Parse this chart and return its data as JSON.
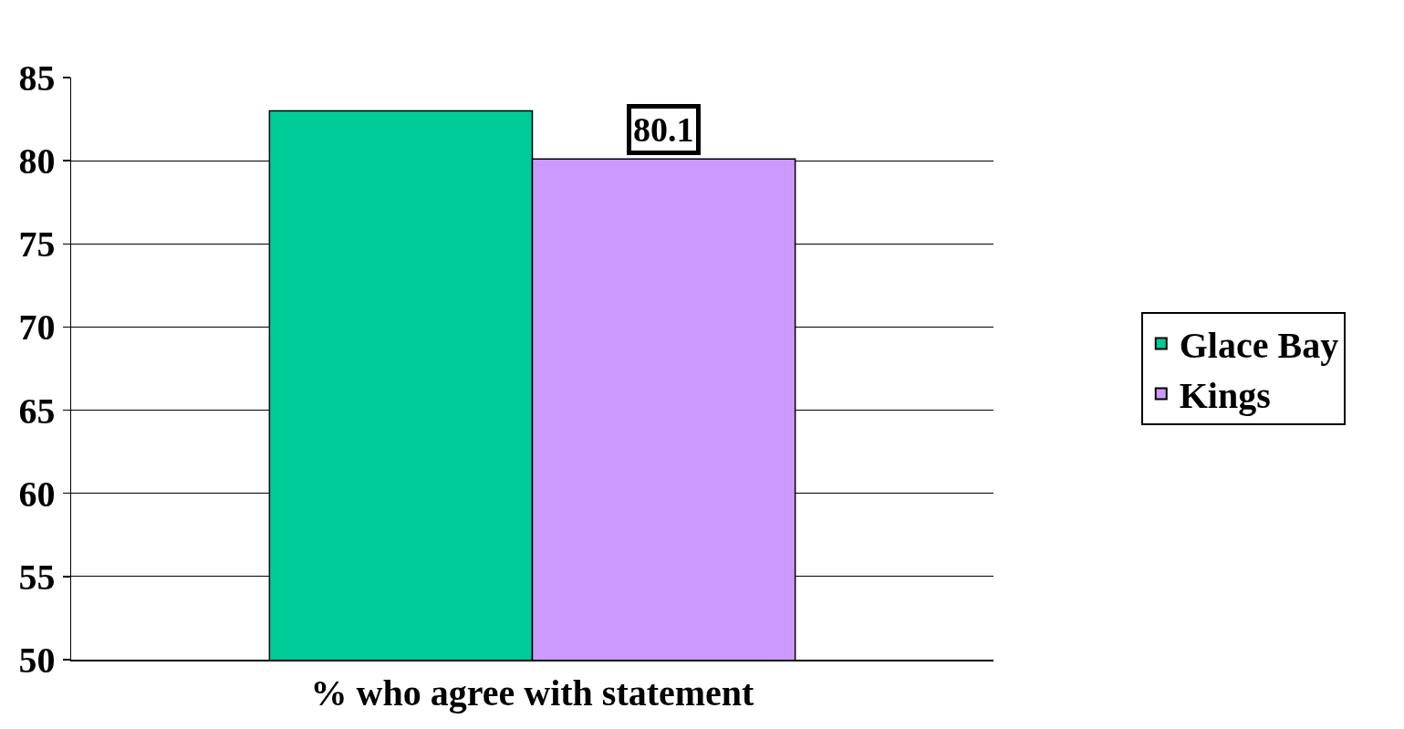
{
  "chart_data": {
    "type": "bar",
    "categories": [
      "% who agree with statement"
    ],
    "series": [
      {
        "name": "Glace Bay",
        "color": "#00cc99",
        "values": [
          83.0
        ]
      },
      {
        "name": "Kings",
        "color": "#cc99ff",
        "values": [
          80.1
        ],
        "value_labels": [
          "80.1"
        ]
      }
    ],
    "ylim": [
      50,
      85
    ],
    "yticks": [
      50,
      55,
      60,
      65,
      70,
      75,
      80,
      85
    ],
    "grid": "y",
    "legend": "right"
  }
}
